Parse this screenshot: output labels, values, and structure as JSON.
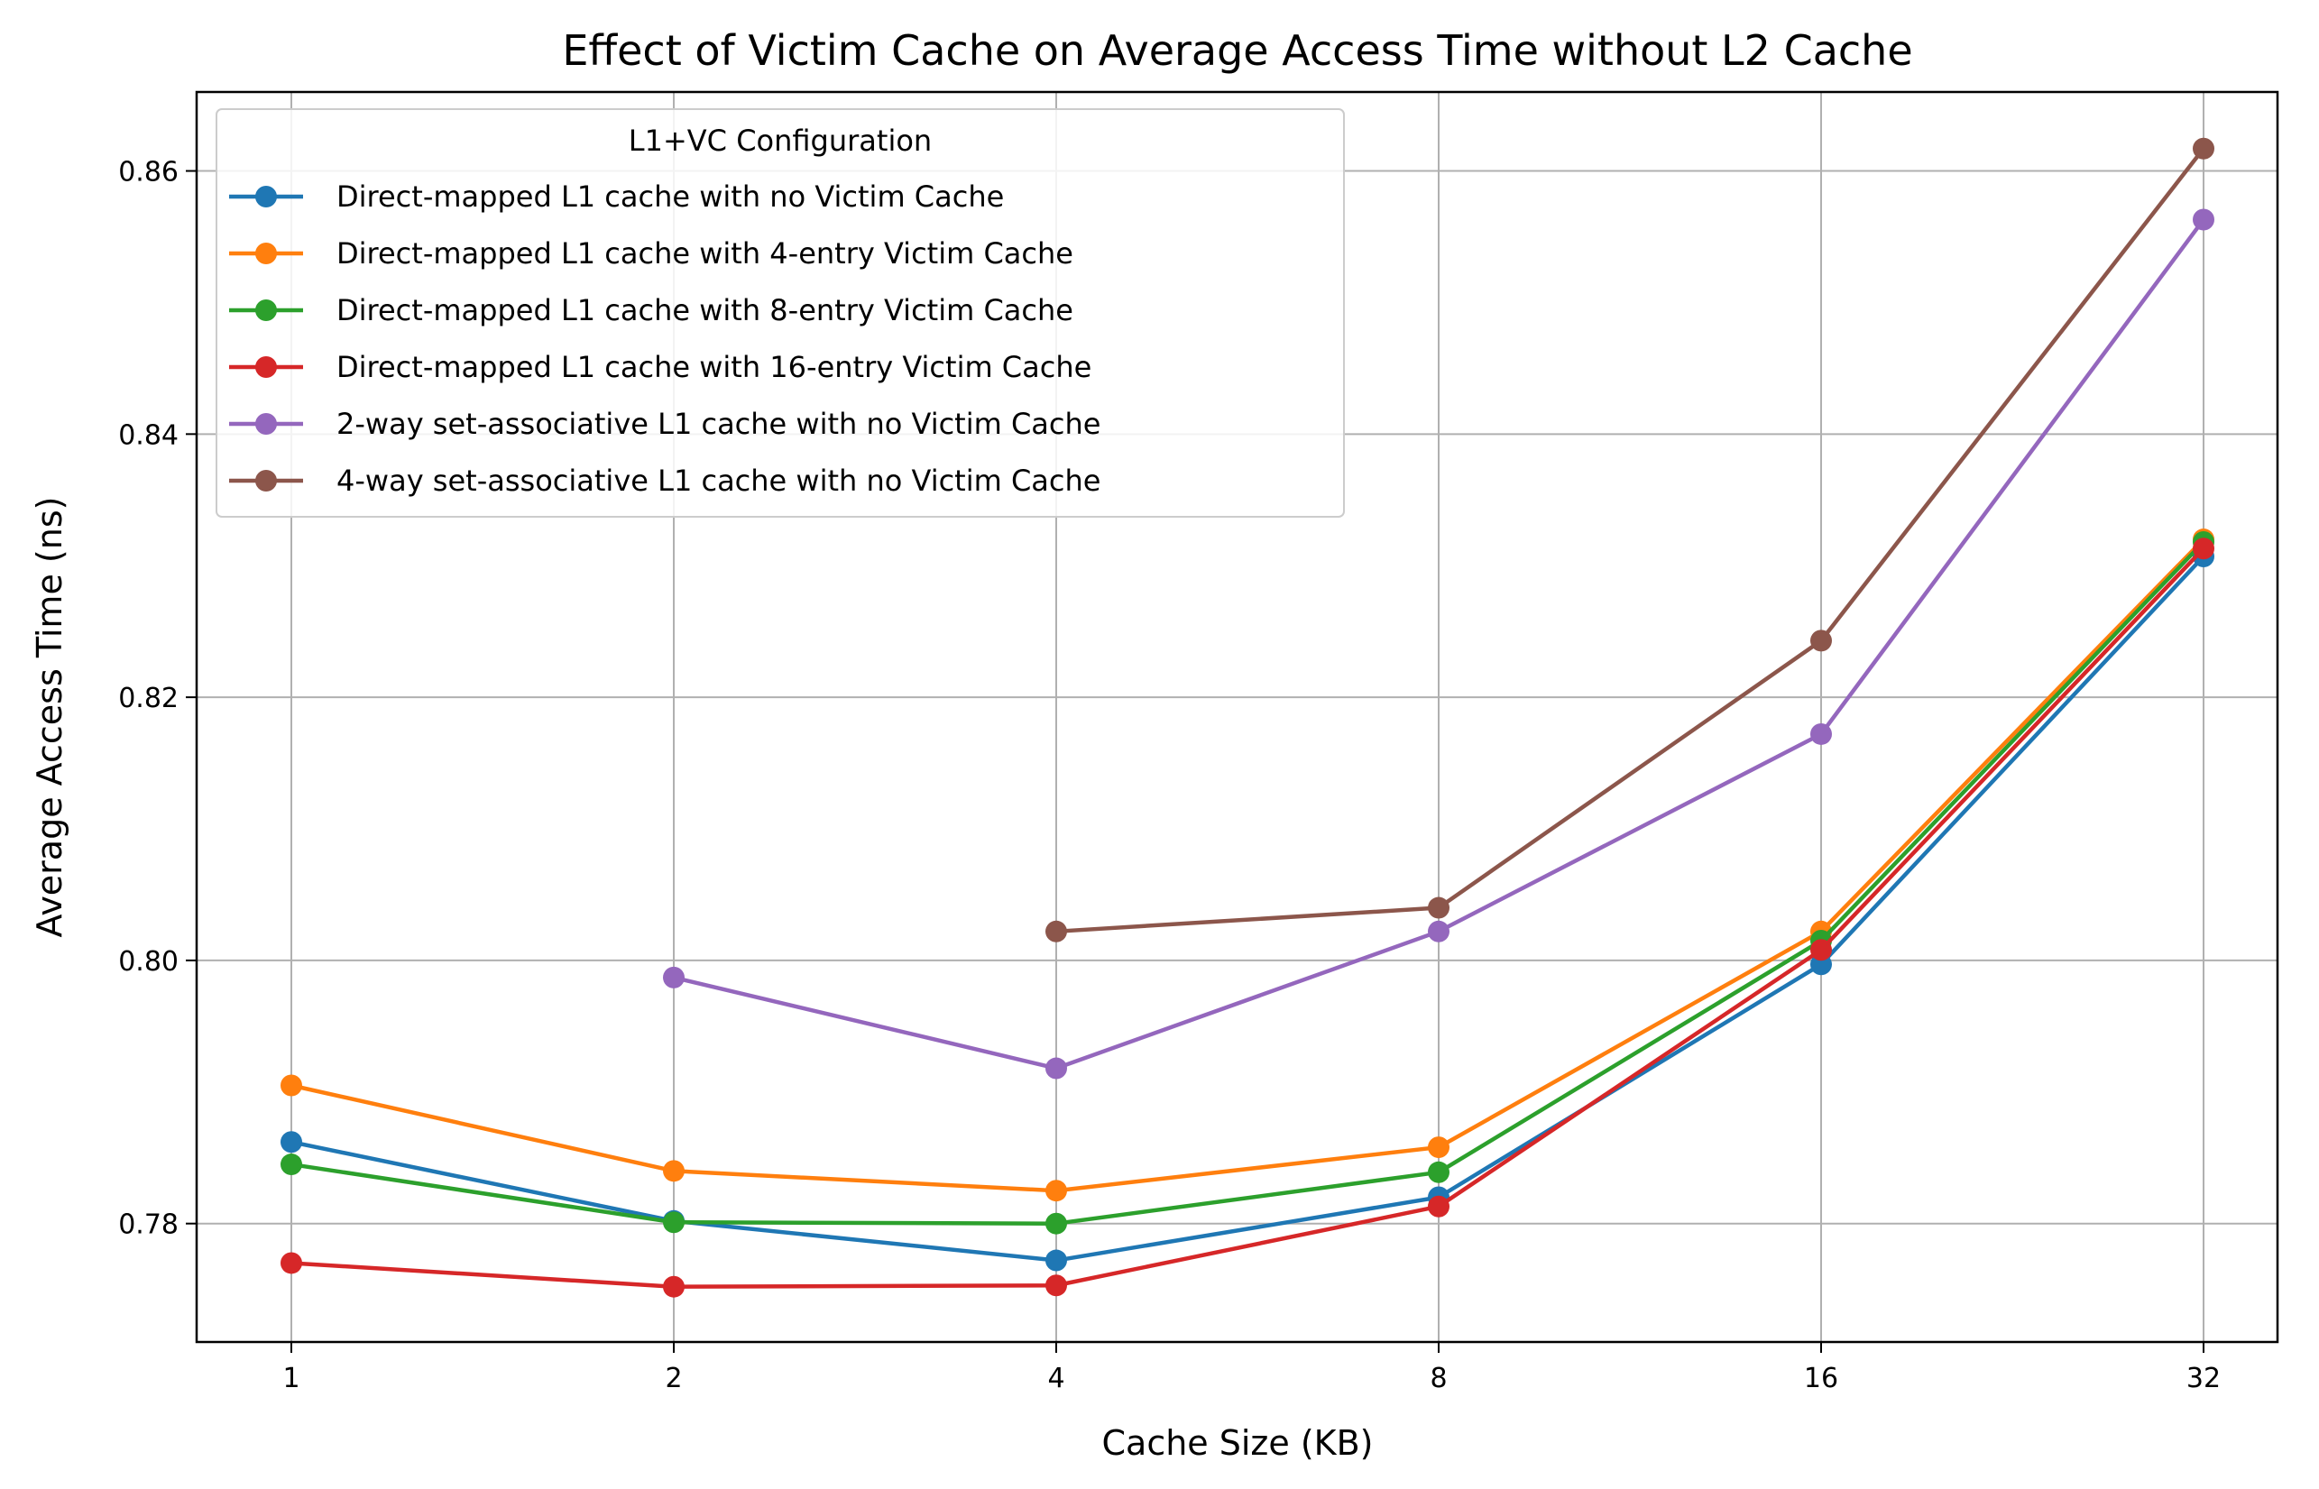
{
  "chart_data": {
    "type": "line",
    "title": "Effect of Victim Cache on Average Access Time without L2 Cache",
    "xlabel": "Cache Size (KB)",
    "ylabel": "Average Access Time (ns)",
    "categories": [
      "1",
      "2",
      "4",
      "8",
      "16",
      "32"
    ],
    "x_scale": "log2 (equally spaced categories)",
    "ylim": [
      0.771,
      0.866
    ],
    "yticks": [
      0.78,
      0.8,
      0.82,
      0.84,
      0.86
    ],
    "ytick_labels": [
      "0.78",
      "0.80",
      "0.82",
      "0.84",
      "0.86"
    ],
    "grid": true,
    "legend": {
      "title": "L1+VC Configuration",
      "placement": "top-left"
    },
    "series": [
      {
        "name": "Direct-mapped L1 cache with no Victim Cache",
        "color": "#1f77b4",
        "values": [
          0.7862,
          0.7802,
          0.7772,
          0.782,
          0.7997,
          0.8307
        ]
      },
      {
        "name": "Direct-mapped L1 cache with 4-entry Victim Cache",
        "color": "#ff7f0e",
        "values": [
          0.7905,
          0.784,
          0.7825,
          0.7858,
          0.8022,
          0.832
        ]
      },
      {
        "name": "Direct-mapped L1 cache with 8-entry Victim Cache",
        "color": "#2ca02c",
        "values": [
          0.7845,
          0.7801,
          0.78,
          0.7839,
          0.8015,
          0.8318
        ]
      },
      {
        "name": "Direct-mapped L1 cache with 16-entry Victim Cache",
        "color": "#d62728",
        "values": [
          0.777,
          0.7752,
          0.7753,
          0.7813,
          0.8008,
          0.8313
        ]
      },
      {
        "name": "2-way set-associative L1 cache with no Victim Cache",
        "color": "#9467bd",
        "values": [
          null,
          0.7987,
          0.7918,
          0.8022,
          0.8172,
          0.8563
        ]
      },
      {
        "name": "4-way set-associative L1 cache with no Victim Cache",
        "color": "#8c564b",
        "values": [
          null,
          null,
          0.8022,
          0.804,
          0.8243,
          0.8617
        ]
      }
    ]
  }
}
